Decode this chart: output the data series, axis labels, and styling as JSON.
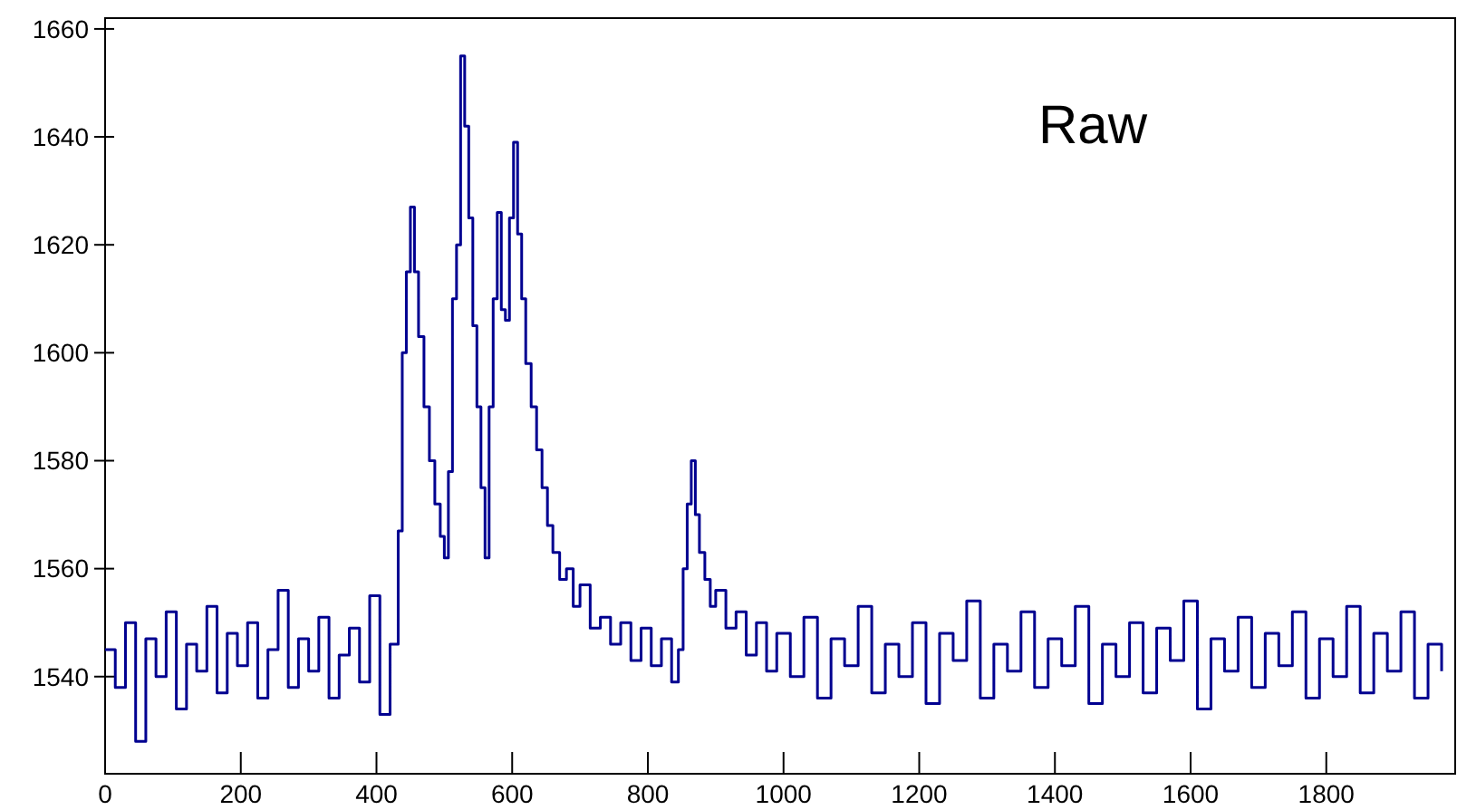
{
  "chart_data": {
    "type": "step",
    "annotations": [
      "Raw"
    ],
    "xlim": [
      0,
      1990
    ],
    "ylim": [
      1522,
      1662
    ],
    "xticks": [
      0,
      200,
      400,
      600,
      800,
      1000,
      1200,
      1400,
      1600,
      1800
    ],
    "yticks": [
      1540,
      1560,
      1580,
      1600,
      1620,
      1640,
      1660
    ],
    "series": [
      {
        "color": "#000090",
        "x": [
          0,
          15,
          30,
          45,
          60,
          75,
          90,
          105,
          120,
          135,
          150,
          165,
          180,
          195,
          210,
          225,
          240,
          255,
          270,
          285,
          300,
          315,
          330,
          345,
          360,
          375,
          390,
          405,
          420,
          432,
          438,
          444,
          450,
          456,
          462,
          470,
          478,
          486,
          494,
          500,
          506,
          512,
          518,
          524,
          530,
          536,
          542,
          548,
          554,
          560,
          566,
          572,
          578,
          584,
          590,
          596,
          602,
          608,
          614,
          620,
          628,
          636,
          644,
          652,
          660,
          670,
          680,
          690,
          700,
          715,
          730,
          745,
          760,
          775,
          790,
          805,
          820,
          835,
          845,
          852,
          858,
          864,
          870,
          876,
          884,
          892,
          900,
          915,
          930,
          945,
          960,
          975,
          990,
          1010,
          1030,
          1050,
          1070,
          1090,
          1110,
          1130,
          1150,
          1170,
          1190,
          1210,
          1230,
          1250,
          1270,
          1290,
          1310,
          1330,
          1350,
          1370,
          1390,
          1410,
          1430,
          1450,
          1470,
          1490,
          1510,
          1530,
          1550,
          1570,
          1590,
          1610,
          1630,
          1650,
          1670,
          1690,
          1710,
          1730,
          1750,
          1770,
          1790,
          1810,
          1830,
          1850,
          1870,
          1890,
          1910,
          1930,
          1950,
          1970
        ],
        "values": [
          1545,
          1538,
          1550,
          1528,
          1547,
          1540,
          1552,
          1534,
          1546,
          1541,
          1553,
          1537,
          1548,
          1542,
          1550,
          1536,
          1545,
          1556,
          1538,
          1547,
          1541,
          1551,
          1536,
          1544,
          1549,
          1539,
          1555,
          1533,
          1546,
          1567,
          1600,
          1615,
          1627,
          1615,
          1603,
          1590,
          1580,
          1572,
          1566,
          1562,
          1578,
          1610,
          1620,
          1655,
          1642,
          1625,
          1605,
          1590,
          1575,
          1562,
          1590,
          1610,
          1626,
          1608,
          1606,
          1625,
          1639,
          1622,
          1610,
          1598,
          1590,
          1582,
          1575,
          1568,
          1563,
          1558,
          1560,
          1553,
          1557,
          1549,
          1551,
          1546,
          1550,
          1543,
          1549,
          1542,
          1547,
          1539,
          1545,
          1560,
          1572,
          1580,
          1570,
          1563,
          1558,
          1553,
          1556,
          1549,
          1552,
          1544,
          1550,
          1541,
          1548,
          1540,
          1551,
          1536,
          1547,
          1542,
          1553,
          1537,
          1546,
          1540,
          1550,
          1535,
          1548,
          1543,
          1554,
          1536,
          1546,
          1541,
          1552,
          1538,
          1547,
          1542,
          1553,
          1535,
          1546,
          1540,
          1550,
          1537,
          1549,
          1543,
          1554,
          1534,
          1547,
          1541,
          1551,
          1538,
          1548,
          1542,
          1552,
          1536,
          1547,
          1540,
          1553,
          1537,
          1548,
          1541,
          1552,
          1536,
          1546,
          1541
        ]
      }
    ]
  }
}
